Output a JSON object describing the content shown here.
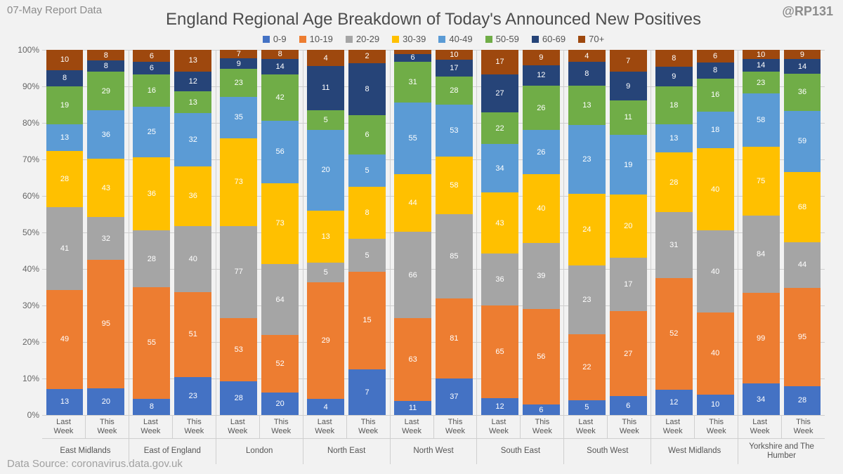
{
  "meta": {
    "report_label": "07-May Report Data",
    "attribution": "@RP131",
    "source": "Data Source: coronavirus.data.gov.uk",
    "title": "England Regional Age Breakdown of Today's Announced New Positives"
  },
  "chart": {
    "type": "stacked_bar_100pct",
    "y_axis": {
      "min": 0,
      "max": 100,
      "step": 10,
      "suffix": "%"
    },
    "grid_color": "#cfcfcf",
    "background_color": "#f2f2f2",
    "age_bands": [
      {
        "label": "0-9",
        "color": "#4472c4",
        "text": "#ffffff"
      },
      {
        "label": "10-19",
        "color": "#ed7d31",
        "text": "#ffffff"
      },
      {
        "label": "20-29",
        "color": "#a5a5a5",
        "text": "#ffffff"
      },
      {
        "label": "30-39",
        "color": "#ffc000",
        "text": "#ffffff"
      },
      {
        "label": "40-49",
        "color": "#5b9bd5",
        "text": "#ffffff"
      },
      {
        "label": "50-59",
        "color": "#70ad47",
        "text": "#ffffff"
      },
      {
        "label": "60-69",
        "color": "#264478",
        "text": "#ffffff"
      },
      {
        "label": "70+",
        "color": "#9e480e",
        "text": "#ffffff"
      }
    ],
    "week_labels": [
      "Last Week",
      "This Week"
    ],
    "regions": [
      {
        "name": "East Midlands",
        "bars": [
          [
            13,
            49,
            41,
            28,
            13,
            19,
            8,
            10
          ],
          [
            20,
            95,
            32,
            43,
            36,
            29,
            8,
            8
          ]
        ]
      },
      {
        "name": "East of England",
        "bars": [
          [
            8,
            55,
            28,
            36,
            25,
            16,
            6,
            6
          ],
          [
            23,
            51,
            40,
            36,
            32,
            13,
            12,
            13
          ]
        ]
      },
      {
        "name": "London",
        "bars": [
          [
            28,
            53,
            77,
            73,
            35,
            23,
            9,
            7
          ],
          [
            20,
            52,
            64,
            73,
            56,
            42,
            14,
            8
          ]
        ]
      },
      {
        "name": "North East",
        "bars": [
          [
            4,
            29,
            5,
            13,
            20,
            5,
            11,
            4
          ],
          [
            7,
            15,
            5,
            8,
            5,
            6,
            8,
            2
          ]
        ]
      },
      {
        "name": "North West",
        "bars": [
          [
            11,
            63,
            66,
            44,
            55,
            31,
            6,
            3
          ],
          [
            37,
            81,
            85,
            58,
            53,
            28,
            17,
            10
          ]
        ]
      },
      {
        "name": "South East",
        "bars": [
          [
            12,
            65,
            36,
            43,
            34,
            22,
            27,
            17
          ],
          [
            6,
            56,
            39,
            40,
            26,
            26,
            12,
            9
          ]
        ]
      },
      {
        "name": "South West",
        "bars": [
          [
            5,
            22,
            23,
            24,
            23,
            13,
            8,
            4
          ],
          [
            6,
            27,
            17,
            20,
            19,
            11,
            9,
            7
          ]
        ]
      },
      {
        "name": "West Midlands",
        "bars": [
          [
            12,
            52,
            31,
            28,
            13,
            18,
            9,
            8
          ],
          [
            10,
            40,
            40,
            40,
            18,
            16,
            8,
            6
          ]
        ]
      },
      {
        "name": "Yorkshire and The Humber",
        "bars": [
          [
            34,
            99,
            84,
            75,
            58,
            23,
            14,
            10
          ],
          [
            28,
            95,
            44,
            68,
            59,
            36,
            14,
            9
          ]
        ]
      }
    ]
  }
}
